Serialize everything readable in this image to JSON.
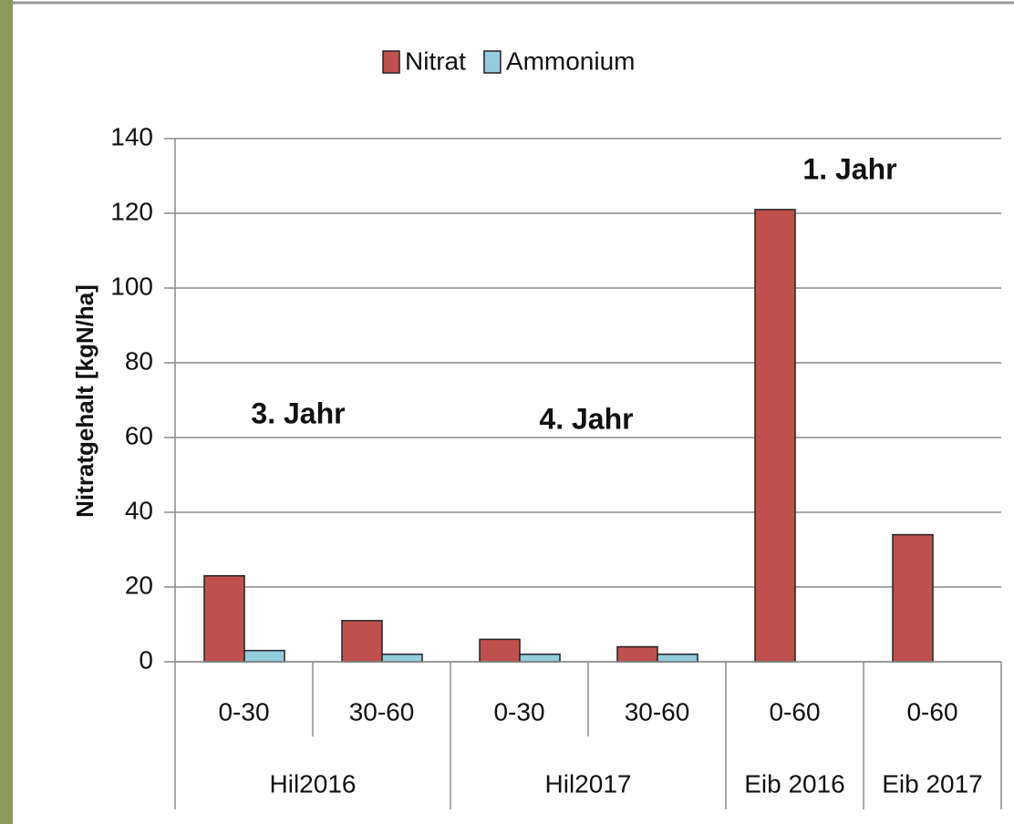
{
  "chart_data": {
    "type": "bar",
    "y_label": "Nitratgehalt  [kgN/ha]",
    "groups": [
      {
        "name": "Hil2016",
        "categories": [
          "0-30",
          "30-60"
        ]
      },
      {
        "name": "Hil2017",
        "categories": [
          "0-30",
          "30-60"
        ]
      },
      {
        "name": "Eib 2016",
        "categories": [
          "0-60"
        ]
      },
      {
        "name": "Eib 2017",
        "categories": [
          "0-60"
        ]
      }
    ],
    "series": [
      {
        "name": "Nitrat",
        "color": "#c0504d",
        "values": [
          23,
          11,
          6,
          4,
          121,
          34
        ]
      },
      {
        "name": "Ammonium",
        "color": "#93cddd",
        "values": [
          3,
          2,
          2,
          2,
          null,
          null
        ]
      }
    ],
    "annotations": [
      "3. Jahr",
      "4. Jahr",
      "1. Jahr"
    ],
    "ylim": [
      0,
      140
    ],
    "yticks": [
      0,
      20,
      40,
      60,
      80,
      100,
      120,
      140
    ],
    "grid": true,
    "legend": "top"
  }
}
